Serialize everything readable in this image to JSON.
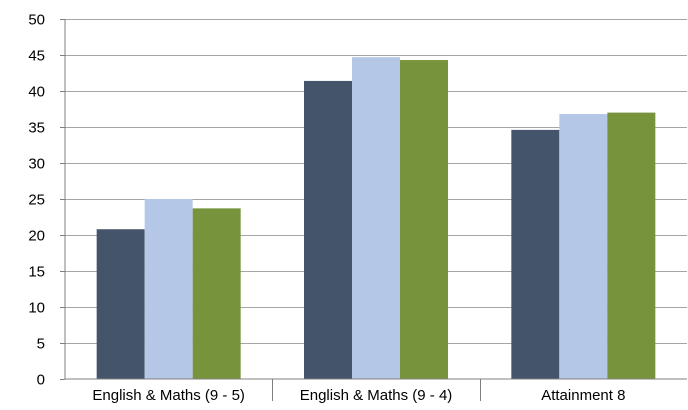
{
  "chart_data": {
    "type": "bar",
    "title": "",
    "xlabel": "",
    "ylabel": "",
    "categories": [
      "English & Maths (9 - 5)",
      "English & Maths (9 - 4)",
      "Attainment 8"
    ],
    "series": [
      {
        "values": [
          20.8,
          41.4,
          34.6
        ],
        "color": "#44546a"
      },
      {
        "values": [
          25.0,
          44.7,
          36.8
        ],
        "color": "#b4c7e7"
      },
      {
        "values": [
          23.7,
          44.3,
          37.0
        ],
        "color": "#77933c"
      }
    ],
    "ylim": [
      0,
      50
    ],
    "ytick_step": 5,
    "yticks": [
      "0",
      "5",
      "10",
      "15",
      "20",
      "25",
      "30",
      "35",
      "40",
      "45",
      "50"
    ],
    "grid": true,
    "gridline_color": "#a6a6a6",
    "axis_color": "#808080",
    "legend": "none"
  }
}
